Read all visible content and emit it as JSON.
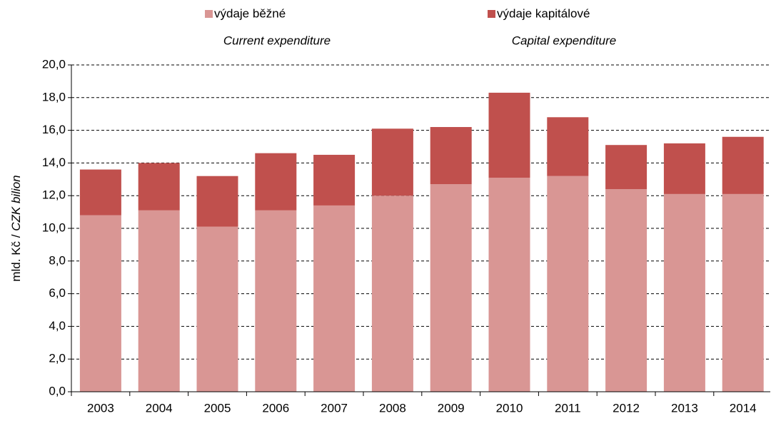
{
  "chart_data": {
    "type": "stacked_bar",
    "ylabel": [
      "mld. Kč / ",
      "CZK bilion"
    ],
    "categories": [
      "2003",
      "2004",
      "2005",
      "2006",
      "2007",
      "2008",
      "2009",
      "2010",
      "2011",
      "2012",
      "2013",
      "2014"
    ],
    "series": [
      {
        "name": "výdaje běžné",
        "subtitle": "Current expenditure",
        "color": "#d99694",
        "values": [
          10.8,
          11.1,
          10.1,
          11.1,
          11.4,
          12.0,
          12.7,
          13.1,
          13.2,
          12.4,
          12.1,
          12.1
        ]
      },
      {
        "name": "výdaje kapitálové",
        "subtitle": "Capital expenditure",
        "color": "#c0504d",
        "values": [
          2.8,
          2.9,
          3.1,
          3.5,
          3.1,
          4.1,
          3.5,
          5.2,
          3.6,
          2.7,
          3.1,
          3.5
        ]
      }
    ],
    "ylim": [
      0,
      20
    ],
    "yticks": [
      {
        "value": 0,
        "label": "0,0"
      },
      {
        "value": 2,
        "label": "2,0"
      },
      {
        "value": 4,
        "label": "4,0"
      },
      {
        "value": 6,
        "label": "6,0"
      },
      {
        "value": 8,
        "label": "8,0"
      },
      {
        "value": 10,
        "label": "10,0"
      },
      {
        "value": 12,
        "label": "12,0"
      },
      {
        "value": 14,
        "label": "14,0"
      },
      {
        "value": 16,
        "label": "16,0"
      },
      {
        "value": 18,
        "label": "18,0"
      },
      {
        "value": 20,
        "label": "20,0"
      }
    ],
    "grid": true
  }
}
